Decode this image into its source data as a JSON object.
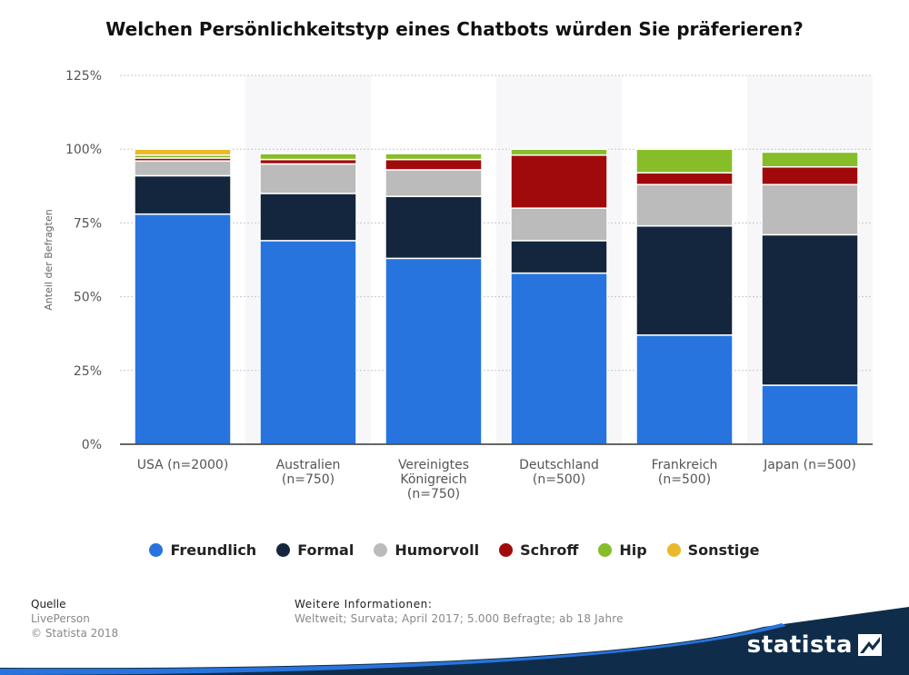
{
  "title": "Welchen Persönlichkeitstyp eines Chatbots würden Sie präferieren?",
  "legend": [
    {
      "label": "Freundlich",
      "color": "#2874de"
    },
    {
      "label": "Formal",
      "color": "#13263d"
    },
    {
      "label": "Humorvoll",
      "color": "#bbbbbb"
    },
    {
      "label": "Schroff",
      "color": "#a10a0c"
    },
    {
      "label": "Hip",
      "color": "#86bd29"
    },
    {
      "label": "Sonstige",
      "color": "#e9b92b"
    }
  ],
  "footer": {
    "source_heading": "Quelle",
    "source_name": "LivePerson",
    "copyright": "© Statista 2018",
    "info_heading": "Weitere Informationen:",
    "info_text": "Weltweit; Survata; April 2017; 5.000 Befragte; ab 18 Jahre",
    "brand": "statista"
  },
  "chart_data": {
    "type": "bar",
    "stacked": true,
    "ylabel": "Anteil der Befragten",
    "ylim": [
      0,
      125
    ],
    "yticks": [
      "0%",
      "25%",
      "50%",
      "75%",
      "100%",
      "125%"
    ],
    "grid": true,
    "legend_position": "bottom",
    "categories": [
      [
        "USA (n=2000)"
      ],
      [
        "Australien",
        "(n=750)"
      ],
      [
        "Vereinigtes",
        "Königreich",
        "(n=750)"
      ],
      [
        "Deutschland",
        "(n=500)"
      ],
      [
        "Frankreich",
        "(n=500)"
      ],
      [
        "Japan (n=500)"
      ]
    ],
    "series": [
      {
        "name": "Freundlich",
        "color": "#2874de",
        "values": [
          78,
          69,
          63,
          58,
          37,
          20
        ]
      },
      {
        "name": "Formal",
        "color": "#13263d",
        "values": [
          13,
          16,
          21,
          11,
          37,
          51
        ]
      },
      {
        "name": "Humorvoll",
        "color": "#bbbbbb",
        "values": [
          5,
          10,
          9,
          11,
          14,
          17
        ]
      },
      {
        "name": "Schroff",
        "color": "#a10a0c",
        "values": [
          1,
          1.5,
          3.5,
          18,
          4,
          6
        ]
      },
      {
        "name": "Hip",
        "color": "#86bd29",
        "values": [
          1,
          2,
          2,
          2,
          8,
          5
        ]
      },
      {
        "name": "Sonstige",
        "color": "#e9b92b",
        "values": [
          2,
          0,
          0,
          0,
          0.5,
          0
        ]
      }
    ]
  }
}
